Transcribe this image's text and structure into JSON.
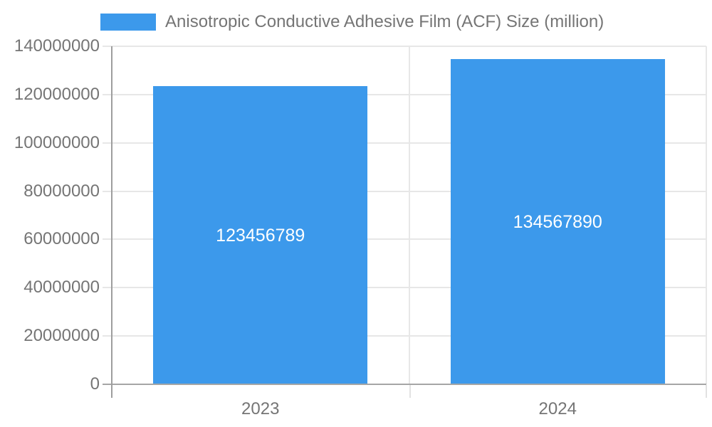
{
  "legend": {
    "label": "Anisotropic Conductive Adhesive Film (ACF) Size (million)"
  },
  "chart_data": {
    "type": "bar",
    "title": "Anisotropic Conductive Adhesive Film (ACF) Size (million)",
    "categories": [
      "2023",
      "2024"
    ],
    "series": [
      {
        "name": "Anisotropic Conductive Adhesive Film (ACF) Size (million)",
        "values": [
          123456789,
          134567890
        ]
      }
    ],
    "data_labels": [
      "123456789",
      "134567890"
    ],
    "ylim": [
      0,
      140000000
    ],
    "y_ticks": [
      0,
      20000000,
      40000000,
      60000000,
      80000000,
      100000000,
      120000000,
      140000000
    ],
    "y_tick_labels": [
      "0",
      "20000000",
      "40000000",
      "60000000",
      "80000000",
      "100000000",
      "120000000",
      "140000000"
    ],
    "xlabel": "",
    "ylabel": "",
    "grid": true,
    "legend_position": "top"
  },
  "colors": {
    "bar": "#3C99EB",
    "gridline": "#e7e7e7",
    "minor_tick": "#e2e2e2",
    "axis_line": "#9e9e9e",
    "baseline": "#a6a6a6",
    "text": "#757575",
    "data_label": "#ffffff",
    "background": "#ffffff"
  }
}
